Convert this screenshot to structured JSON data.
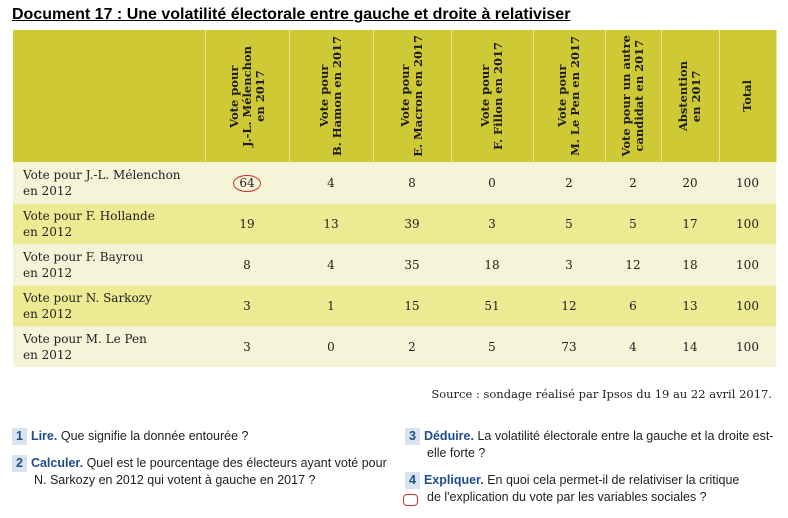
{
  "title": "Document 17 : Une volatilité électorale entre gauche et droite à relativiser",
  "table": {
    "columns": [
      "Vote pour\nJ.-L. Mélenchon\nen 2017",
      "Vote pour\nB. Hamon en 2017",
      "Vote pour\nE. Macron en 2017",
      "Vote pour\nF. Fillon en 2017",
      "Vote pour\nM. Le Pen en 2017",
      "Vote pour un autre\ncandidat en 2017",
      "Abstention\nen 2017",
      "Total"
    ],
    "rows": [
      {
        "label_line1": "Vote pour J.-L. Mélenchon",
        "label_line2": "en 2012",
        "values": [
          "64",
          "4",
          "8",
          "0",
          "2",
          "2",
          "20",
          "100"
        ]
      },
      {
        "label_line1": "Vote pour F. Hollande",
        "label_line2": "en 2012",
        "values": [
          "19",
          "13",
          "39",
          "3",
          "5",
          "5",
          "17",
          "100"
        ]
      },
      {
        "label_line1": "Vote pour F. Bayrou",
        "label_line2": "en 2012",
        "values": [
          "8",
          "4",
          "35",
          "18",
          "3",
          "12",
          "18",
          "100"
        ]
      },
      {
        "label_line1": "Vote pour N. Sarkozy",
        "label_line2": "en 2012",
        "values": [
          "3",
          "1",
          "15",
          "51",
          "12",
          "6",
          "13",
          "100"
        ]
      },
      {
        "label_line1": "Vote pour M. Le Pen",
        "label_line2": "en 2012",
        "values": [
          "3",
          "0",
          "2",
          "5",
          "73",
          "4",
          "14",
          "100"
        ]
      }
    ],
    "highlight_color": "#c8322e",
    "header_color": "#cfc935"
  },
  "source": "Source : sondage réalisé par Ipsos du 19 au 22 avril 2017.",
  "questions": {
    "q1": {
      "num": "1",
      "kw": "Lire.",
      "text": "Que signifie la donnée entourée ?"
    },
    "q2": {
      "num": "2",
      "kw": "Calculer.",
      "text_line1": "Quel est le pourcentage des électeurs ayant voté pour",
      "text_line2": "N. Sarkozy en 2012 qui votent à gauche en 2017 ?"
    },
    "q3": {
      "num": "3",
      "kw": "Déduire.",
      "text_line1": "La volatilité électorale entre la gauche et la droite est-",
      "text_line2": "elle forte ?"
    },
    "q4": {
      "num": "4",
      "kw": "Expliquer.",
      "text_line1": "En quoi cela permet-il de relativiser la critique",
      "text_line2": "de l'explication du vote par les variables sociales ?"
    }
  }
}
